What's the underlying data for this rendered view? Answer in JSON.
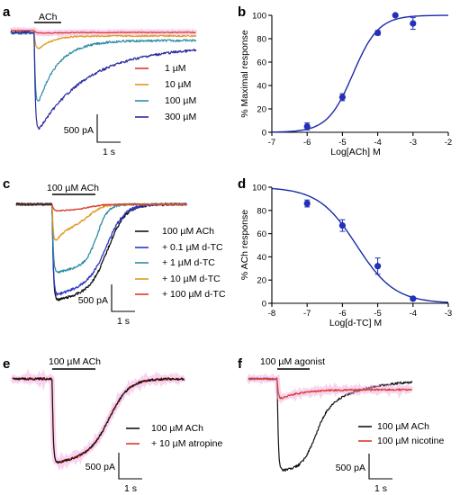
{
  "colors": {
    "red": "#d83a2c",
    "orange": "#e0981e",
    "teal": "#2e8ba8",
    "darkblue": "#2a2d9c",
    "blue": "#2b36c4",
    "black": "#111111",
    "fit": "#1a2aa8",
    "point": "#2330b8",
    "halo": "#f3b0e6"
  },
  "panels": {
    "a": {
      "letter": "a",
      "stimulus": "ACh",
      "legend": [
        "1 µM",
        "10 µM",
        "100 µM",
        "300 µM"
      ],
      "legend_colors": [
        "red",
        "orange",
        "teal",
        "darkblue"
      ],
      "scale_current": "500 pA",
      "scale_time": "1 s"
    },
    "b": {
      "letter": "b",
      "xlabel": "Log[ACh] M",
      "ylabel": "% Maximal response"
    },
    "c": {
      "letter": "c",
      "stimulus": "100 µM ACh",
      "legend": [
        "100 µM ACh",
        "+ 0.1 µM d-TC",
        "+ 1 µM d-TC",
        "+ 10 µM d-TC",
        "+ 100 µM d-TC"
      ],
      "legend_colors": [
        "black",
        "blue",
        "teal",
        "orange",
        "red"
      ],
      "scale_current": "500 pA",
      "scale_time": "1 s"
    },
    "d": {
      "letter": "d",
      "xlabel": "Log[d-TC] M",
      "ylabel": "% ACh response"
    },
    "e": {
      "letter": "e",
      "stimulus": "100 µM ACh",
      "legend": [
        "100 µM ACh",
        "+ 10 µM atropine"
      ],
      "legend_colors": [
        "black",
        "red"
      ],
      "scale_current": "500 pA",
      "scale_time": "1 s"
    },
    "f": {
      "letter": "f",
      "stimulus": "100 µM agonist",
      "legend": [
        "100 µM ACh",
        "100 µM nicotine"
      ],
      "legend_colors": [
        "black",
        "red"
      ],
      "scale_current": "500 pA",
      "scale_time": "1 s"
    }
  },
  "chart_data": [
    {
      "panel": "b",
      "type": "scatter",
      "xlabel": "Log[ACh] M",
      "ylabel": "% Maximal response",
      "xlim": [
        -7,
        -2
      ],
      "ylim": [
        0,
        100
      ],
      "xticks": [
        -7,
        -6,
        -5,
        -4,
        -3,
        -2
      ],
      "yticks": [
        0,
        20,
        40,
        60,
        80,
        100
      ],
      "points": [
        {
          "x": -6,
          "y": 5,
          "err": 3
        },
        {
          "x": -5,
          "y": 30,
          "err": 3
        },
        {
          "x": -4,
          "y": 85,
          "err": 2
        },
        {
          "x": -3.5,
          "y": 100,
          "err": 1
        },
        {
          "x": -3,
          "y": 93,
          "err": 5
        }
      ],
      "fit": {
        "bottom": 0,
        "top": 100,
        "logEC50": -4.7,
        "hill": 1.2
      }
    },
    {
      "panel": "d",
      "type": "scatter",
      "xlabel": "Log[d-TC] M",
      "ylabel": "% ACh response",
      "xlim": [
        -8,
        -3
      ],
      "ylim": [
        0,
        100
      ],
      "xticks": [
        -8,
        -7,
        -6,
        -5,
        -4,
        -3
      ],
      "yticks": [
        0,
        20,
        40,
        60,
        80,
        100
      ],
      "points": [
        {
          "x": -7,
          "y": 86,
          "err": 3
        },
        {
          "x": -6,
          "y": 67,
          "err": 5
        },
        {
          "x": -5,
          "y": 32,
          "err": 7
        },
        {
          "x": -4,
          "y": 4,
          "err": 1
        }
      ],
      "fit": {
        "bottom": 0,
        "top": 100,
        "logIC50": -5.6,
        "hill": 0.8
      }
    }
  ]
}
